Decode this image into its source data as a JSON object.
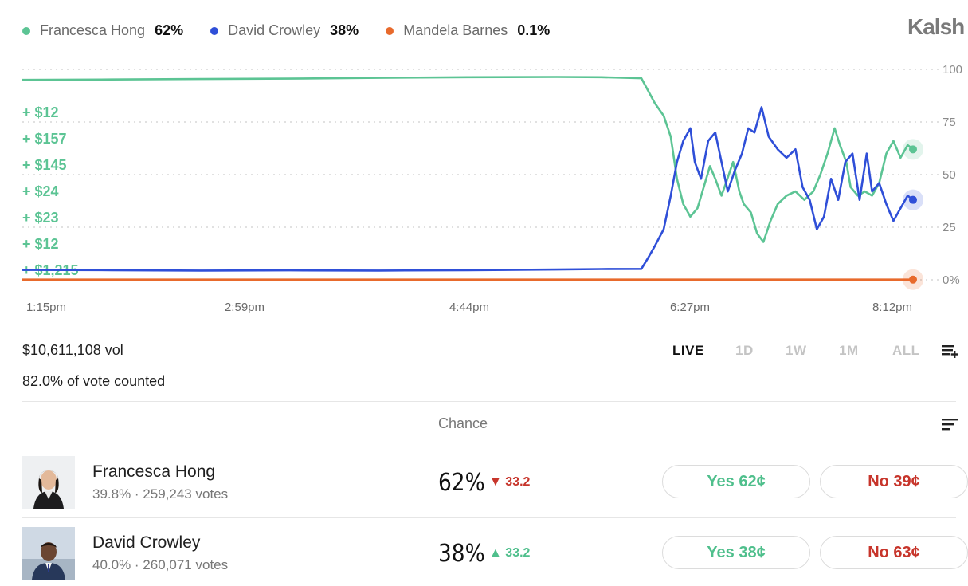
{
  "brand": "Kalsh",
  "legend": [
    {
      "name": "Francesca Hong",
      "pct": "62%",
      "color": "#5cc494"
    },
    {
      "name": "David Crowley",
      "pct": "38%",
      "color": "#2f4fd8"
    },
    {
      "name": "Mandela Barnes",
      "pct": "0.1%",
      "color": "#e86a2c"
    }
  ],
  "chart_data": {
    "type": "line",
    "x_ticks": [
      "1:15pm",
      "2:59pm",
      "4:44pm",
      "6:27pm",
      "8:12pm"
    ],
    "y_ticks": [
      "100",
      "75",
      "50",
      "25",
      "0%"
    ],
    "ylim": [
      0,
      100
    ],
    "grid": true,
    "trade_labels": [
      "+ $12",
      "+ $157",
      "+ $145",
      "+ $24",
      "+ $23",
      "+ $12",
      "+ $1,215"
    ],
    "series": [
      {
        "name": "Francesca Hong",
        "color": "#5cc494",
        "points": [
          [
            0,
            95
          ],
          [
            0.1,
            95.2
          ],
          [
            0.2,
            95.4
          ],
          [
            0.3,
            95.6
          ],
          [
            0.4,
            96
          ],
          [
            0.5,
            96.3
          ],
          [
            0.6,
            96.4
          ],
          [
            0.65,
            96.3
          ],
          [
            0.695,
            95.8
          ],
          [
            0.705,
            88
          ],
          [
            0.71,
            84
          ],
          [
            0.72,
            78
          ],
          [
            0.728,
            68
          ],
          [
            0.735,
            48
          ],
          [
            0.742,
            36
          ],
          [
            0.75,
            30
          ],
          [
            0.758,
            34
          ],
          [
            0.765,
            44
          ],
          [
            0.772,
            54
          ],
          [
            0.778,
            48
          ],
          [
            0.785,
            40
          ],
          [
            0.79,
            46
          ],
          [
            0.798,
            56
          ],
          [
            0.805,
            42
          ],
          [
            0.81,
            36
          ],
          [
            0.818,
            32
          ],
          [
            0.825,
            22
          ],
          [
            0.832,
            18
          ],
          [
            0.84,
            28
          ],
          [
            0.848,
            36
          ],
          [
            0.858,
            40
          ],
          [
            0.868,
            42
          ],
          [
            0.878,
            38
          ],
          [
            0.888,
            42
          ],
          [
            0.896,
            50
          ],
          [
            0.904,
            60
          ],
          [
            0.912,
            72
          ],
          [
            0.918,
            64
          ],
          [
            0.925,
            56
          ],
          [
            0.93,
            44
          ],
          [
            0.938,
            40
          ],
          [
            0.946,
            42
          ],
          [
            0.954,
            40
          ],
          [
            0.962,
            46
          ],
          [
            0.97,
            60
          ],
          [
            0.978,
            66
          ],
          [
            0.986,
            58
          ],
          [
            0.994,
            64
          ],
          [
            1.0,
            62
          ]
        ]
      },
      {
        "name": "David Crowley",
        "color": "#2f4fd8",
        "points": [
          [
            0,
            4.7
          ],
          [
            0.1,
            4.6
          ],
          [
            0.2,
            4.4
          ],
          [
            0.3,
            4.5
          ],
          [
            0.4,
            4.4
          ],
          [
            0.5,
            4.6
          ],
          [
            0.6,
            4.9
          ],
          [
            0.65,
            5.1
          ],
          [
            0.695,
            5.2
          ],
          [
            0.702,
            10
          ],
          [
            0.71,
            16
          ],
          [
            0.72,
            24
          ],
          [
            0.728,
            40
          ],
          [
            0.735,
            56
          ],
          [
            0.742,
            66
          ],
          [
            0.75,
            72
          ],
          [
            0.755,
            56
          ],
          [
            0.762,
            48
          ],
          [
            0.77,
            66
          ],
          [
            0.778,
            70
          ],
          [
            0.785,
            56
          ],
          [
            0.792,
            42
          ],
          [
            0.8,
            52
          ],
          [
            0.808,
            60
          ],
          [
            0.815,
            72
          ],
          [
            0.822,
            70
          ],
          [
            0.83,
            82
          ],
          [
            0.838,
            68
          ],
          [
            0.848,
            62
          ],
          [
            0.858,
            58
          ],
          [
            0.868,
            62
          ],
          [
            0.876,
            44
          ],
          [
            0.884,
            38
          ],
          [
            0.892,
            24
          ],
          [
            0.9,
            30
          ],
          [
            0.908,
            48
          ],
          [
            0.916,
            38
          ],
          [
            0.924,
            56
          ],
          [
            0.932,
            60
          ],
          [
            0.94,
            38
          ],
          [
            0.948,
            60
          ],
          [
            0.954,
            42
          ],
          [
            0.962,
            46
          ],
          [
            0.97,
            36
          ],
          [
            0.978,
            28
          ],
          [
            0.986,
            34
          ],
          [
            0.994,
            40
          ],
          [
            1.0,
            38
          ]
        ]
      },
      {
        "name": "Mandela Barnes",
        "color": "#e86a2c",
        "points": [
          [
            0,
            0.1
          ],
          [
            1.0,
            0.1
          ]
        ]
      }
    ]
  },
  "stats": {
    "volume": "$10,611,108 vol",
    "vote_counted": "82.0% of vote counted"
  },
  "ranges": [
    "LIVE",
    "1D",
    "1W",
    "1M",
    "ALL"
  ],
  "active_range": "LIVE",
  "table": {
    "chance_header": "Chance",
    "rows": [
      {
        "name": "Francesca Hong",
        "sub": "39.8% · 259,243 votes",
        "chance": "62%",
        "delta": "33.2",
        "delta_dir": "down",
        "yes_label": "Yes 62¢",
        "no_label": "No 39¢"
      },
      {
        "name": "David Crowley",
        "sub": "40.0% · 260,071 votes",
        "chance": "38%",
        "delta": "33.2",
        "delta_dir": "up",
        "yes_label": "Yes 38¢",
        "no_label": "No 63¢"
      }
    ]
  }
}
